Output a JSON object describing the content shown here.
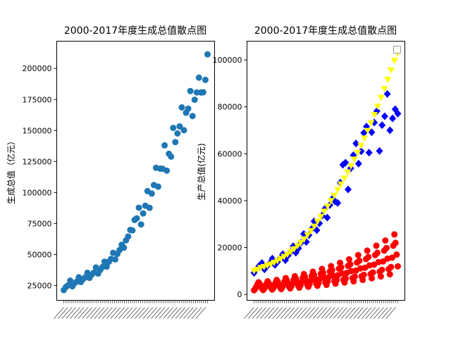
{
  "chart_data": [
    {
      "type": "scatter",
      "title": "2000-2017年度生成总值散点图",
      "xlabel": "",
      "ylabel": "生成总值（亿元）",
      "ylim": [
        13000,
        222000
      ],
      "yticks": [
        25000,
        50000,
        75000,
        100000,
        125000,
        150000,
        175000,
        200000
      ],
      "y_tick_labels": [
        "25000",
        "50000",
        "75000",
        "100000",
        "125000",
        "150000",
        "175000",
        "200000"
      ],
      "x_tick_labels_note": "72 rotated, overlapping quarter labels (e.g. 第一季度 … 第四季度)",
      "colors": {
        "points": "#1f77b4"
      },
      "series": [
        {
          "values": [
            21300,
            23800,
            25100,
            28900,
            24300,
            26800,
            28100,
            31600,
            27800,
            30200,
            31500,
            35200,
            31100,
            33700,
            35300,
            39500,
            34600,
            37500,
            39800,
            44200,
            40200,
            44100,
            46400,
            51300,
            46000,
            50500,
            53600,
            57800,
            55500,
            61400,
            64500,
            69800,
            69400,
            77800,
            79100,
            87700,
            74200,
            83100,
            89300,
            101100,
            87600,
            99100,
            106000,
            119900,
            104700,
            119200,
            119100,
            138000,
            117600,
            131200,
            128900,
            152100,
            140600,
            147600,
            153300,
            168600,
            150200,
            164300,
            167600,
            181800,
            161600,
            174800,
            180700,
            192600,
            180600,
            180800,
            190800,
            211400
          ]
        }
      ]
    },
    {
      "type": "scatter",
      "title": "2000-2017年度生成总值散点图",
      "xlabel": "",
      "ylabel": "生产总值(亿元)",
      "ylim": [
        -2500,
        108000
      ],
      "yticks": [
        0,
        20000,
        40000,
        60000,
        80000,
        100000
      ],
      "y_tick_labels": [
        "0",
        "20000",
        "40000",
        "60000",
        "80000",
        "100000"
      ],
      "x_tick_labels_note": "72 rotated, overlapping quarter labels",
      "legend": "upper right (empty)",
      "series": [
        {
          "color": "#0000ff",
          "marker": "diamond",
          "values": [
            9200,
            10800,
            12300,
            13400,
            10700,
            12100,
            13400,
            15300,
            12600,
            13900,
            15400,
            17200,
            14600,
            16600,
            18100,
            20600,
            17800,
            19700,
            22100,
            25800,
            22400,
            25300,
            27900,
            31200,
            27400,
            30300,
            33600,
            36400,
            32800,
            38100,
            40800,
            39700,
            39000,
            47700,
            55300,
            56200,
            44800,
            53800,
            59400,
            64400,
            55800,
            61100,
            68900,
            71600,
            60500,
            69200,
            73300,
            78200,
            61200,
            72200,
            76000,
            85500,
            70000,
            75100,
            79000,
            77100
          ]
        },
        {
          "color": "#ffff00",
          "marker": "triangle_down",
          "values": [
            10000,
            10600,
            11400,
            11800,
            12400,
            12900,
            13600,
            14300,
            15200,
            16100,
            17100,
            18200,
            19400,
            20700,
            22100,
            23600,
            25300,
            27100,
            29000,
            31100,
            33200,
            35400,
            37600,
            39900,
            42200,
            44600,
            47000,
            49500,
            52100,
            54800,
            57600,
            60500,
            63500,
            66600,
            69800,
            73100,
            76600,
            80200,
            83900,
            87700,
            91600,
            95600,
            99700,
            103000
          ]
        },
        {
          "color": "#ff0000",
          "marker": "circle",
          "values": [
            1800,
            2400,
            3300,
            4300,
            5200,
            4500,
            3800,
            2500,
            1900,
            2500,
            3400,
            4500,
            5600,
            4800,
            4000,
            2800,
            2100,
            2700,
            3800,
            5000,
            6200,
            5400,
            4300,
            3000,
            2300,
            3100,
            4200,
            5600,
            7000,
            6000,
            4700,
            3300,
            2600,
            3500,
            4700,
            6300,
            7800,
            6700,
            5200,
            3700,
            2900,
            3900,
            5300,
            7100,
            8700,
            7500,
            5800,
            4100,
            3300,
            4400,
            5900,
            7900,
            9700,
            8300,
            6500,
            4600,
            3700,
            4900,
            6600,
            8800,
            10900,
            9300,
            7200,
            5100,
            4100,
            5500,
            7400,
            9800,
            12100,
            10400,
            8000,
            5700,
            4600,
            6100,
            8200,
            11000,
            13500,
            11600,
            9000,
            6300,
            5100,
            6800,
            9200,
            12200,
            15000,
            12900,
            10000,
            7000,
            5600,
            7600,
            10200,
            13600,
            16800,
            14400,
            11100,
            7800,
            6200,
            8400,
            11400,
            15100,
            18700,
            16000,
            12400,
            8700,
            6900,
            9400,
            12700,
            16800,
            20800,
            17800,
            13800,
            9700,
            7700,
            10500,
            14100,
            18700,
            23000,
            19800,
            15300,
            10800,
            8600,
            11700,
            15700,
            20800,
            25600,
            22000,
            17000,
            12000
          ]
        }
      ]
    }
  ]
}
